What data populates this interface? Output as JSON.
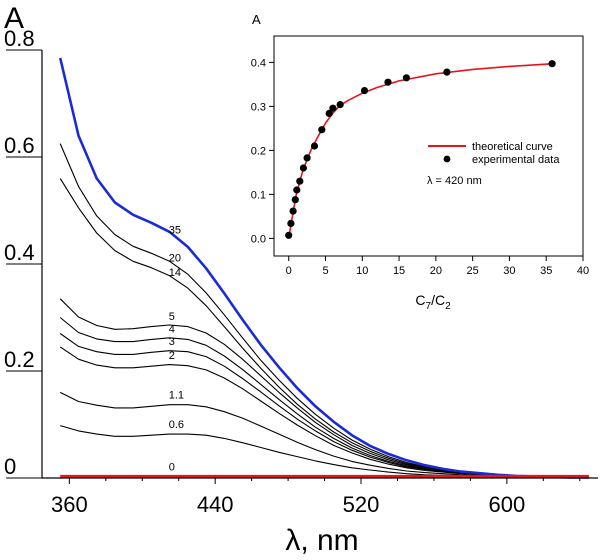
{
  "chart_data": [
    {
      "type": "line",
      "ylabel": "A",
      "xlabel": "λ, nm",
      "xlim": [
        345,
        650
      ],
      "ylim": [
        0,
        0.8
      ],
      "xticks": [
        360,
        440,
        520,
        600
      ],
      "yticks": [
        {
          "value": 0,
          "label": "0"
        },
        {
          "value": 0.2,
          "label": "0.2"
        },
        {
          "value": 0.4,
          "label": "0.4"
        },
        {
          "value": 0.6,
          "label": "0.6"
        },
        {
          "value": 0.8,
          "label": "0.8"
        }
      ],
      "colors": {
        "highlight": "#1a2bd6",
        "baseline": "#e8141c",
        "curves": "#000000"
      },
      "curve_x": [
        355,
        365,
        375,
        385,
        395,
        405,
        415,
        425,
        435,
        445,
        455,
        465,
        475,
        485,
        495,
        505,
        515,
        525,
        535,
        545,
        555,
        565,
        575,
        585,
        595,
        605,
        615,
        625,
        635,
        645
      ],
      "series": [
        {
          "name": "0",
          "label": "0",
          "label_x": 420,
          "color": "baseline",
          "values": [
            0.003,
            0.003,
            0.003,
            0.003,
            0.003,
            0.003,
            0.003,
            0.003,
            0.003,
            0.003,
            0.003,
            0.003,
            0.003,
            0.003,
            0.003,
            0.003,
            0.003,
            0.003,
            0.003,
            0.003,
            0.003,
            0.003,
            0.003,
            0.003,
            0.003,
            0.003,
            0.003,
            0.003,
            0.003,
            0.003
          ]
        },
        {
          "name": "0.6",
          "label": "0.6",
          "label_x": 420,
          "values": [
            0.098,
            0.088,
            0.082,
            0.078,
            0.078,
            0.08,
            0.082,
            0.082,
            0.08,
            0.074,
            0.066,
            0.057,
            0.048,
            0.04,
            0.032,
            0.025,
            0.019,
            0.015,
            0.011,
            0.008,
            0.006,
            0.005,
            0.004,
            0.003,
            0.002,
            0.002,
            0.001,
            0.001,
            0.001,
            0.001
          ]
        },
        {
          "name": "1.1",
          "label": "1.1",
          "label_x": 420,
          "values": [
            0.16,
            0.143,
            0.136,
            0.131,
            0.131,
            0.134,
            0.137,
            0.137,
            0.133,
            0.124,
            0.112,
            0.097,
            0.082,
            0.067,
            0.053,
            0.041,
            0.031,
            0.024,
            0.018,
            0.013,
            0.01,
            0.008,
            0.006,
            0.004,
            0.003,
            0.002,
            0.002,
            0.001,
            0.001,
            0.001
          ]
        },
        {
          "name": "2",
          "label": "2",
          "label_x": 420,
          "values": [
            0.245,
            0.222,
            0.211,
            0.206,
            0.206,
            0.209,
            0.212,
            0.21,
            0.202,
            0.187,
            0.167,
            0.144,
            0.121,
            0.099,
            0.079,
            0.061,
            0.047,
            0.035,
            0.026,
            0.019,
            0.014,
            0.011,
            0.008,
            0.006,
            0.004,
            0.003,
            0.002,
            0.002,
            0.001,
            0.001
          ]
        },
        {
          "name": "3",
          "label": "3",
          "label_x": 420,
          "values": [
            0.27,
            0.246,
            0.236,
            0.231,
            0.231,
            0.235,
            0.238,
            0.236,
            0.227,
            0.209,
            0.186,
            0.161,
            0.135,
            0.11,
            0.088,
            0.068,
            0.052,
            0.039,
            0.029,
            0.021,
            0.016,
            0.012,
            0.009,
            0.006,
            0.004,
            0.003,
            0.002,
            0.002,
            0.001,
            0.001
          ]
        },
        {
          "name": "4",
          "label": "4",
          "label_x": 420,
          "values": [
            0.3,
            0.272,
            0.26,
            0.255,
            0.255,
            0.259,
            0.262,
            0.259,
            0.248,
            0.228,
            0.203,
            0.175,
            0.147,
            0.12,
            0.095,
            0.074,
            0.056,
            0.042,
            0.031,
            0.023,
            0.017,
            0.012,
            0.009,
            0.007,
            0.005,
            0.003,
            0.002,
            0.002,
            0.001,
            0.001
          ]
        },
        {
          "name": "5",
          "label": "5",
          "label_x": 420,
          "values": [
            0.335,
            0.301,
            0.285,
            0.278,
            0.279,
            0.283,
            0.286,
            0.283,
            0.271,
            0.25,
            0.222,
            0.191,
            0.16,
            0.131,
            0.104,
            0.081,
            0.061,
            0.046,
            0.034,
            0.025,
            0.018,
            0.013,
            0.01,
            0.007,
            0.005,
            0.003,
            0.002,
            0.002,
            0.001,
            0.001
          ]
        },
        {
          "name": "14",
          "label": "14",
          "label_x": 420,
          "values": [
            0.56,
            0.505,
            0.458,
            0.425,
            0.405,
            0.393,
            0.378,
            0.355,
            0.322,
            0.283,
            0.243,
            0.205,
            0.17,
            0.138,
            0.11,
            0.086,
            0.066,
            0.05,
            0.037,
            0.027,
            0.02,
            0.014,
            0.01,
            0.007,
            0.005,
            0.004,
            0.003,
            0.002,
            0.001,
            0.001
          ]
        },
        {
          "name": "20",
          "label": "20",
          "label_x": 420,
          "values": [
            0.625,
            0.545,
            0.49,
            0.455,
            0.433,
            0.42,
            0.405,
            0.381,
            0.346,
            0.305,
            0.262,
            0.22,
            0.183,
            0.149,
            0.119,
            0.093,
            0.071,
            0.054,
            0.04,
            0.029,
            0.021,
            0.015,
            0.011,
            0.008,
            0.005,
            0.004,
            0.003,
            0.002,
            0.001,
            0.001
          ]
        },
        {
          "name": "35",
          "label": "35",
          "label_x": 420,
          "color": "highlight",
          "values": [
            0.785,
            0.64,
            0.56,
            0.515,
            0.492,
            0.477,
            0.46,
            0.432,
            0.392,
            0.345,
            0.296,
            0.249,
            0.207,
            0.168,
            0.134,
            0.105,
            0.08,
            0.06,
            0.045,
            0.033,
            0.024,
            0.017,
            0.012,
            0.009,
            0.006,
            0.004,
            0.003,
            0.002,
            0.001,
            0.001
          ]
        }
      ]
    },
    {
      "type": "scatter",
      "ylabel": "A",
      "xlabel_main": "C",
      "xlabel_sub1": "7",
      "xlabel_mid": "/C",
      "xlabel_sub2": "2",
      "xlim": [
        -2,
        40
      ],
      "ylim": [
        -0.04,
        0.46
      ],
      "xticks": [
        0,
        5,
        10,
        15,
        20,
        25,
        30,
        35,
        40
      ],
      "yticks": [
        {
          "value": 0.0,
          "label": "0.0"
        },
        {
          "value": 0.1,
          "label": "0.1"
        },
        {
          "value": 0.2,
          "label": "0.2"
        },
        {
          "value": 0.3,
          "label": "0.3"
        },
        {
          "value": 0.4,
          "label": "0.4"
        }
      ],
      "legend": {
        "position": "center-right",
        "entries": [
          "theoretical curve",
          "experimental data"
        ]
      },
      "annotation": "λ = 420 nm",
      "colors": {
        "curve": "#e8141c",
        "points": "#000000"
      },
      "points": [
        {
          "x": 0,
          "y": 0.007
        },
        {
          "x": 0.3,
          "y": 0.034
        },
        {
          "x": 0.6,
          "y": 0.062
        },
        {
          "x": 0.9,
          "y": 0.088
        },
        {
          "x": 1.1,
          "y": 0.11
        },
        {
          "x": 1.5,
          "y": 0.13
        },
        {
          "x": 2.0,
          "y": 0.16
        },
        {
          "x": 2.5,
          "y": 0.183
        },
        {
          "x": 3.5,
          "y": 0.21
        },
        {
          "x": 4.5,
          "y": 0.247
        },
        {
          "x": 5.5,
          "y": 0.284
        },
        {
          "x": 6.0,
          "y": 0.296
        },
        {
          "x": 7.0,
          "y": 0.304
        },
        {
          "x": 10.3,
          "y": 0.336
        },
        {
          "x": 13.5,
          "y": 0.355
        },
        {
          "x": 16.0,
          "y": 0.365
        },
        {
          "x": 21.5,
          "y": 0.378
        },
        {
          "x": 35.8,
          "y": 0.397
        }
      ],
      "curve": [
        {
          "x": 0,
          "y": 0.0
        },
        {
          "x": 0.5,
          "y": 0.05
        },
        {
          "x": 1,
          "y": 0.098
        },
        {
          "x": 1.5,
          "y": 0.13
        },
        {
          "x": 2,
          "y": 0.158
        },
        {
          "x": 3,
          "y": 0.2
        },
        {
          "x": 4,
          "y": 0.232
        },
        {
          "x": 5,
          "y": 0.262
        },
        {
          "x": 6,
          "y": 0.285
        },
        {
          "x": 7,
          "y": 0.302
        },
        {
          "x": 8,
          "y": 0.313
        },
        {
          "x": 10,
          "y": 0.33
        },
        {
          "x": 12,
          "y": 0.343
        },
        {
          "x": 15,
          "y": 0.358
        },
        {
          "x": 20,
          "y": 0.374
        },
        {
          "x": 25,
          "y": 0.384
        },
        {
          "x": 30,
          "y": 0.391
        },
        {
          "x": 36,
          "y": 0.397
        }
      ]
    }
  ]
}
